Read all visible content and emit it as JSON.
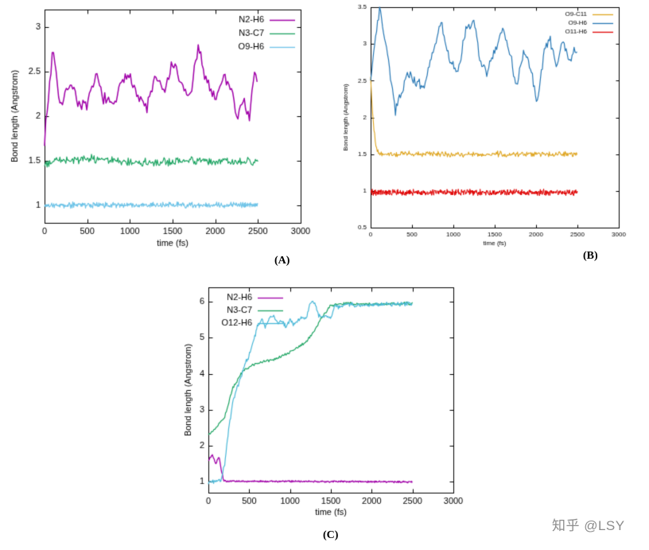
{
  "page": {
    "background": "#ffffff"
  },
  "watermark": {
    "text": "知乎 @LSY",
    "color": "#8c8c8c"
  },
  "chart_data": [
    {
      "id": "A",
      "type": "line",
      "panel_label": "(A)",
      "xlabel": "time (fs)",
      "ylabel": "Bond length (Angstrom)",
      "xlim": [
        0,
        3000
      ],
      "ylim": [
        0.8,
        3.2
      ],
      "xticks": [
        0,
        500,
        1000,
        1500,
        2000,
        2500,
        3000
      ],
      "yticks": [
        1,
        1.5,
        2,
        2.5,
        3
      ],
      "legend_position": "top-right",
      "grid": false,
      "series": [
        {
          "name": "N2-H6",
          "color": "#a000a8",
          "width": 1.5,
          "noise": 0.09,
          "dt": 15,
          "keypoints": [
            [
              0,
              1.75
            ],
            [
              40,
              2.15
            ],
            [
              100,
              2.8
            ],
            [
              150,
              2.35
            ],
            [
              200,
              2.1
            ],
            [
              300,
              2.4
            ],
            [
              400,
              2.15
            ],
            [
              500,
              2.1
            ],
            [
              600,
              2.45
            ],
            [
              700,
              2.2
            ],
            [
              800,
              2.1
            ],
            [
              900,
              2.35
            ],
            [
              1000,
              2.5
            ],
            [
              1100,
              2.2
            ],
            [
              1200,
              2.1
            ],
            [
              1300,
              2.45
            ],
            [
              1400,
              2.25
            ],
            [
              1500,
              2.6
            ],
            [
              1600,
              2.35
            ],
            [
              1700,
              2.2
            ],
            [
              1800,
              2.75
            ],
            [
              1900,
              2.4
            ],
            [
              2000,
              2.2
            ],
            [
              2100,
              2.45
            ],
            [
              2200,
              2.3
            ],
            [
              2260,
              1.95
            ],
            [
              2320,
              2.2
            ],
            [
              2400,
              2.0
            ],
            [
              2460,
              2.45
            ],
            [
              2500,
              2.4
            ]
          ]
        },
        {
          "name": "N3-C7",
          "color": "#1da462",
          "width": 1.2,
          "noise": 0.055,
          "dt": 10,
          "keypoints": [
            [
              0,
              1.44
            ],
            [
              100,
              1.5
            ],
            [
              600,
              1.52
            ],
            [
              1200,
              1.48
            ],
            [
              1800,
              1.5
            ],
            [
              2500,
              1.49
            ]
          ]
        },
        {
          "name": "O9-H6",
          "color": "#6fc4e8",
          "width": 1.2,
          "noise": 0.038,
          "dt": 6,
          "keypoints": [
            [
              0,
              1.0
            ],
            [
              2500,
              1.0
            ]
          ]
        }
      ]
    },
    {
      "id": "B",
      "type": "line",
      "panel_label": "(B)",
      "xlabel": "time (fs)",
      "ylabel": "Bond length (Angstrom)",
      "xlim": [
        0,
        3000
      ],
      "ylim": [
        0.5,
        3.5
      ],
      "xticks": [
        0,
        500,
        1000,
        1500,
        2000,
        2500,
        3000
      ],
      "yticks": [
        0.5,
        1,
        1.5,
        2,
        2.5,
        3,
        3.5
      ],
      "legend_position": "top-right",
      "grid": false,
      "series": [
        {
          "name": "O9-C11",
          "color": "#dfa520",
          "width": 1.1,
          "noise": 0.045,
          "dt": 8,
          "keypoints": [
            [
              0,
              2.55
            ],
            [
              25,
              2.05
            ],
            [
              60,
              1.6
            ],
            [
              100,
              1.5
            ],
            [
              2500,
              1.5
            ]
          ]
        },
        {
          "name": "O9-H6",
          "color": "#2878b5",
          "width": 1.2,
          "noise": 0.08,
          "dt": 12,
          "keypoints": [
            [
              0,
              2.5
            ],
            [
              50,
              3.0
            ],
            [
              110,
              3.45
            ],
            [
              200,
              2.9
            ],
            [
              300,
              2.1
            ],
            [
              360,
              2.3
            ],
            [
              450,
              2.6
            ],
            [
              550,
              2.5
            ],
            [
              650,
              2.4
            ],
            [
              750,
              2.9
            ],
            [
              850,
              3.3
            ],
            [
              950,
              2.8
            ],
            [
              1050,
              2.6
            ],
            [
              1150,
              3.2
            ],
            [
              1250,
              3.3
            ],
            [
              1320,
              2.8
            ],
            [
              1400,
              2.6
            ],
            [
              1500,
              2.9
            ],
            [
              1600,
              3.2
            ],
            [
              1700,
              2.8
            ],
            [
              1760,
              2.4
            ],
            [
              1850,
              2.9
            ],
            [
              1950,
              2.6
            ],
            [
              2010,
              2.2
            ],
            [
              2100,
              2.9
            ],
            [
              2160,
              3.1
            ],
            [
              2250,
              2.7
            ],
            [
              2320,
              3.05
            ],
            [
              2400,
              2.8
            ],
            [
              2500,
              2.95
            ]
          ]
        },
        {
          "name": "O11-H6",
          "color": "#e00000",
          "width": 1.0,
          "noise": 0.05,
          "dt": 4,
          "keypoints": [
            [
              0,
              0.98
            ],
            [
              2500,
              0.98
            ]
          ]
        }
      ]
    },
    {
      "id": "C",
      "type": "line",
      "panel_label": "(C)",
      "xlabel": "time (fs)",
      "ylabel": "Bond length (Angstrom)",
      "xlim": [
        0,
        3000
      ],
      "ylim": [
        0.7,
        6.4
      ],
      "xticks": [
        0,
        500,
        1000,
        1500,
        2000,
        2500,
        3000
      ],
      "yticks": [
        1,
        2,
        3,
        4,
        5,
        6
      ],
      "legend_position": "top-left",
      "grid": false,
      "series": [
        {
          "name": "N2-H6",
          "color": "#a000a8",
          "width": 1.3,
          "noise": 0.028,
          "dt": 6,
          "keypoints": [
            [
              0,
              1.6
            ],
            [
              50,
              1.75
            ],
            [
              90,
              1.5
            ],
            [
              130,
              1.7
            ],
            [
              160,
              1.3
            ],
            [
              190,
              1.02
            ],
            [
              2500,
              1.0
            ]
          ]
        },
        {
          "name": "N3-C7",
          "color": "#1da462",
          "width": 1.2,
          "noise": 0.05,
          "dt": 10,
          "keypoints": [
            [
              0,
              2.3
            ],
            [
              100,
              2.5
            ],
            [
              200,
              2.8
            ],
            [
              300,
              3.6
            ],
            [
              400,
              4.0
            ],
            [
              500,
              4.2
            ],
            [
              600,
              4.3
            ],
            [
              700,
              4.35
            ],
            [
              800,
              4.4
            ],
            [
              900,
              4.5
            ],
            [
              1000,
              4.6
            ],
            [
              1100,
              4.75
            ],
            [
              1200,
              4.9
            ],
            [
              1300,
              5.2
            ],
            [
              1400,
              5.6
            ],
            [
              1500,
              5.9
            ],
            [
              1600,
              5.95
            ],
            [
              2000,
              5.93
            ],
            [
              2500,
              5.95
            ]
          ]
        },
        {
          "name": "O12-H6",
          "color": "#49b8d8",
          "width": 1.2,
          "noise": 0.07,
          "dt": 8,
          "keypoints": [
            [
              0,
              1.0
            ],
            [
              150,
              1.02
            ],
            [
              200,
              1.5
            ],
            [
              250,
              2.5
            ],
            [
              300,
              3.2
            ],
            [
              350,
              3.6
            ],
            [
              400,
              3.9
            ],
            [
              450,
              4.3
            ],
            [
              500,
              4.5
            ],
            [
              550,
              4.9
            ],
            [
              600,
              5.3
            ],
            [
              650,
              5.5
            ],
            [
              700,
              5.3
            ],
            [
              750,
              5.55
            ],
            [
              800,
              5.6
            ],
            [
              850,
              5.4
            ],
            [
              900,
              5.5
            ],
            [
              950,
              5.3
            ],
            [
              1000,
              5.5
            ],
            [
              1050,
              5.35
            ],
            [
              1100,
              5.5
            ],
            [
              1200,
              5.55
            ],
            [
              1250,
              6.0
            ],
            [
              1300,
              5.95
            ],
            [
              1350,
              5.6
            ],
            [
              1450,
              5.6
            ],
            [
              1500,
              5.55
            ],
            [
              1550,
              5.9
            ],
            [
              1600,
              5.85
            ],
            [
              1700,
              5.95
            ],
            [
              1800,
              5.9
            ],
            [
              2500,
              5.95
            ]
          ]
        }
      ]
    }
  ]
}
